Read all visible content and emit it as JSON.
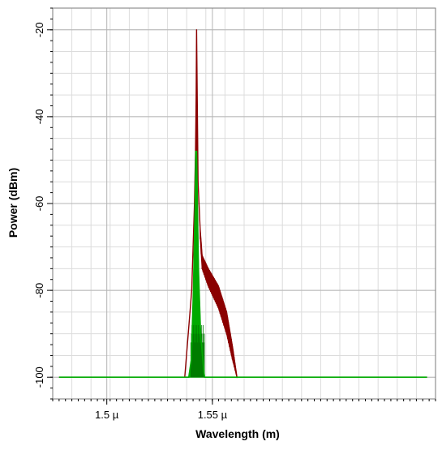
{
  "chart_data": {
    "type": "line",
    "xlabel": "Wavelength (m)",
    "ylabel": "Power (dBm)",
    "x_unit": "µm",
    "xlim": [
      1.4744,
      1.6556
    ],
    "ylim": [
      -105,
      -15
    ],
    "x_ticks": [
      {
        "value": 1.5,
        "label": "1.5 µ"
      },
      {
        "value": 1.55,
        "label": "1.55 µ"
      }
    ],
    "y_ticks": [
      {
        "value": -20,
        "label": "-20"
      },
      {
        "value": -40,
        "label": "-40"
      },
      {
        "value": -60,
        "label": "-60"
      },
      {
        "value": -80,
        "label": "-80"
      },
      {
        "value": -100,
        "label": "-100"
      }
    ],
    "grid": true,
    "series": [
      {
        "color": "#8b0000",
        "noise_floor": -100,
        "x": [
          1.4774,
          1.5369,
          1.5402,
          1.5415,
          1.542,
          1.5423,
          1.5425,
          1.5428,
          1.5432,
          1.5442,
          1.5451,
          1.548,
          1.5528,
          1.5567,
          1.5595,
          1.5616,
          1.6516
        ],
        "y": [
          -100,
          -100,
          -80,
          -60,
          -48,
          -35,
          -20,
          -35,
          -55,
          -66,
          -72,
          -75,
          -79,
          -85,
          -93,
          -100,
          -100
        ],
        "band_x": [
          1.5442,
          1.5451,
          1.548,
          1.5528,
          1.5567,
          1.5595,
          1.5616
        ],
        "band_low": [
          -68,
          -75,
          -79,
          -84,
          -90,
          -96,
          -100
        ],
        "band_high": [
          -66,
          -72,
          -75,
          -79,
          -85,
          -93,
          -100
        ]
      },
      {
        "color": "#00aa00",
        "noise_floor": -100,
        "x": [
          1.4774,
          1.5388,
          1.54,
          1.541,
          1.5418,
          1.5421,
          1.5425,
          1.5429,
          1.5434,
          1.5444,
          1.5458,
          1.5463,
          1.6516
        ],
        "y": [
          -100,
          -100,
          -96,
          -80,
          -60,
          -48,
          -48,
          -60,
          -75,
          -90,
          -98,
          -100,
          -100
        ]
      }
    ]
  }
}
